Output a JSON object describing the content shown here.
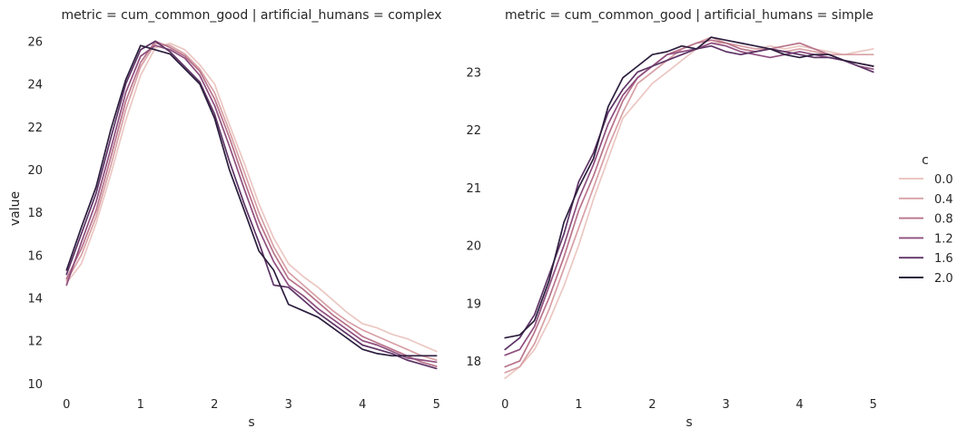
{
  "legend": {
    "title": "c",
    "entries": [
      "0.0",
      "0.4",
      "0.8",
      "1.2",
      "1.6",
      "2.0"
    ],
    "colors": [
      "#ebc7c2",
      "#d7a0a5",
      "#b8738a",
      "#8f4f7f",
      "#5e3466",
      "#2c1e3e"
    ]
  },
  "chart_data": [
    {
      "type": "line",
      "title": "metric = cum_common_good | artificial_humans = complex",
      "xlabel": "s",
      "ylabel": "value",
      "xlim": [
        -0.2,
        5.2
      ],
      "ylim": [
        9.7,
        26.4
      ],
      "xticks": [
        0,
        1,
        2,
        3,
        4,
        5
      ],
      "yticks": [
        10,
        12,
        14,
        16,
        18,
        20,
        22,
        24,
        26
      ],
      "grid": false,
      "legend_placement": "right",
      "x": [
        0,
        0.2,
        0.4,
        0.6,
        0.8,
        1.0,
        1.2,
        1.4,
        1.6,
        1.8,
        2.0,
        2.2,
        2.4,
        2.6,
        2.8,
        3.0,
        3.2,
        3.4,
        3.6,
        3.8,
        4.0,
        4.2,
        4.4,
        4.6,
        4.8,
        5.0
      ],
      "series": [
        {
          "name": "0.0",
          "values": [
            14.7,
            15.6,
            17.5,
            19.8,
            22.3,
            24.4,
            25.7,
            25.9,
            25.6,
            24.9,
            24.0,
            22.1,
            20.3,
            18.4,
            16.8,
            15.6,
            15.0,
            14.5,
            13.9,
            13.3,
            12.8,
            12.6,
            12.3,
            12.1,
            11.8,
            11.5
          ]
        },
        {
          "name": "0.4",
          "values": [
            14.8,
            16.0,
            17.8,
            20.2,
            22.8,
            24.8,
            25.9,
            25.8,
            25.4,
            24.7,
            23.6,
            21.8,
            19.9,
            18.0,
            16.4,
            15.2,
            14.6,
            14.0,
            13.4,
            12.9,
            12.5,
            12.2,
            11.9,
            11.6,
            11.3,
            11.1
          ]
        },
        {
          "name": "0.8",
          "values": [
            14.9,
            16.3,
            18.1,
            20.6,
            23.2,
            25.0,
            26.0,
            25.7,
            25.3,
            24.6,
            23.3,
            21.5,
            19.5,
            17.6,
            16.1,
            14.9,
            14.4,
            13.8,
            13.2,
            12.7,
            12.2,
            11.9,
            11.6,
            11.3,
            11.0,
            10.8
          ]
        },
        {
          "name": "1.2",
          "values": [
            14.6,
            16.6,
            18.5,
            21.0,
            23.6,
            25.3,
            25.8,
            25.6,
            25.2,
            24.4,
            23.0,
            21.1,
            19.1,
            17.2,
            15.7,
            14.6,
            14.1,
            13.5,
            13.0,
            12.5,
            12.0,
            11.8,
            11.5,
            11.2,
            11.1,
            11.0
          ]
        },
        {
          "name": "1.6",
          "values": [
            15.1,
            17.0,
            18.9,
            21.5,
            24.0,
            25.6,
            26.0,
            25.5,
            24.8,
            24.1,
            22.6,
            20.4,
            18.4,
            16.6,
            14.6,
            14.5,
            13.9,
            13.3,
            12.8,
            12.3,
            11.8,
            11.6,
            11.4,
            11.1,
            10.9,
            10.7
          ]
        },
        {
          "name": "2.0",
          "values": [
            15.3,
            17.3,
            19.2,
            21.9,
            24.2,
            25.8,
            25.6,
            25.4,
            24.7,
            24.0,
            22.4,
            20.0,
            18.1,
            16.2,
            15.3,
            13.7,
            13.4,
            13.1,
            12.6,
            12.1,
            11.6,
            11.4,
            11.3,
            11.3,
            11.3,
            11.3
          ]
        }
      ]
    },
    {
      "type": "line",
      "title": "metric = cum_common_good | artificial_humans = simple",
      "xlabel": "s",
      "ylabel": "",
      "xlim": [
        -0.2,
        5.2
      ],
      "ylim": [
        17.5,
        23.68
      ],
      "xticks": [
        0,
        1,
        2,
        3,
        4,
        5
      ],
      "yticks": [
        18,
        19,
        20,
        21,
        22,
        23
      ],
      "grid": false,
      "x": [
        0,
        0.2,
        0.4,
        0.6,
        0.8,
        1.0,
        1.2,
        1.4,
        1.6,
        1.8,
        2.0,
        2.2,
        2.4,
        2.6,
        2.8,
        3.0,
        3.2,
        3.4,
        3.6,
        3.8,
        4.0,
        4.2,
        4.4,
        4.6,
        4.8,
        5.0
      ],
      "series": [
        {
          "name": "0.0",
          "values": [
            17.7,
            17.9,
            18.2,
            18.7,
            19.3,
            20.0,
            20.8,
            21.5,
            22.2,
            22.5,
            22.8,
            23.0,
            23.2,
            23.4,
            23.5,
            23.5,
            23.45,
            23.4,
            23.45,
            23.4,
            23.45,
            23.4,
            23.35,
            23.3,
            23.35,
            23.4
          ]
        },
        {
          "name": "0.4",
          "values": [
            17.8,
            17.9,
            18.3,
            18.9,
            19.6,
            20.3,
            21.0,
            21.7,
            22.3,
            22.8,
            23.0,
            23.2,
            23.4,
            23.5,
            23.6,
            23.5,
            23.45,
            23.4,
            23.4,
            23.35,
            23.4,
            23.35,
            23.3,
            23.3,
            23.3,
            23.3
          ]
        },
        {
          "name": "0.8",
          "values": [
            17.9,
            18.0,
            18.5,
            19.1,
            19.8,
            20.6,
            21.2,
            21.9,
            22.5,
            22.9,
            23.1,
            23.3,
            23.4,
            23.5,
            23.55,
            23.5,
            23.4,
            23.35,
            23.4,
            23.45,
            23.5,
            23.4,
            23.3,
            23.2,
            23.15,
            23.1
          ]
        },
        {
          "name": "1.2",
          "values": [
            18.1,
            18.2,
            18.6,
            19.3,
            20.0,
            20.8,
            21.4,
            22.1,
            22.6,
            22.9,
            23.1,
            23.3,
            23.35,
            23.4,
            23.5,
            23.45,
            23.35,
            23.3,
            23.25,
            23.3,
            23.35,
            23.3,
            23.25,
            23.2,
            23.1,
            23.05
          ]
        },
        {
          "name": "1.6",
          "values": [
            18.2,
            18.4,
            18.8,
            19.5,
            20.2,
            21.1,
            21.6,
            22.3,
            22.7,
            23.0,
            23.1,
            23.2,
            23.3,
            23.4,
            23.45,
            23.35,
            23.3,
            23.35,
            23.4,
            23.35,
            23.3,
            23.25,
            23.25,
            23.2,
            23.1,
            23.0
          ]
        },
        {
          "name": "2.0",
          "values": [
            18.4,
            18.45,
            18.7,
            19.4,
            20.4,
            21.0,
            21.5,
            22.4,
            22.9,
            23.1,
            23.3,
            23.35,
            23.45,
            23.4,
            23.6,
            23.55,
            23.5,
            23.45,
            23.4,
            23.3,
            23.25,
            23.3,
            23.3,
            23.2,
            23.15,
            23.1
          ]
        }
      ]
    }
  ]
}
